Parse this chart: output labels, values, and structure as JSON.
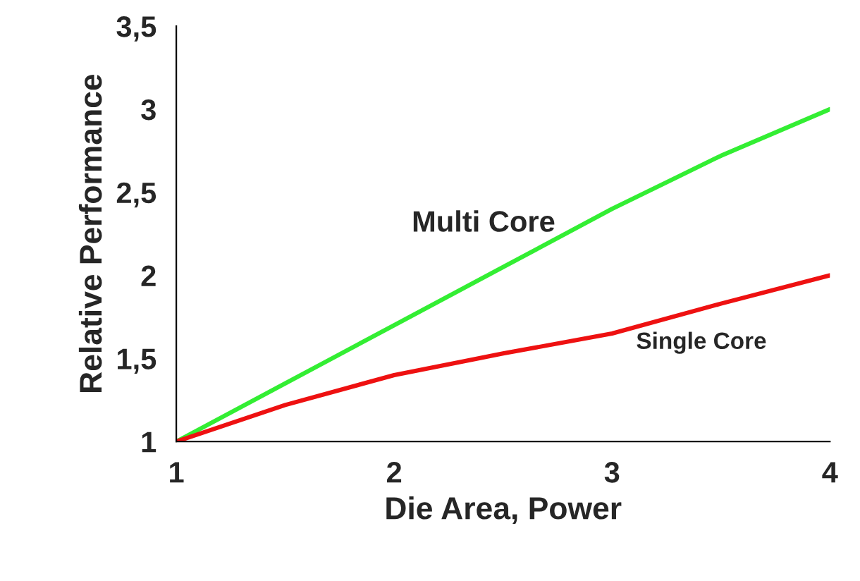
{
  "chart_data": {
    "type": "line",
    "xlabel": "Die Area, Power",
    "ylabel": "Relative Performance",
    "x": [
      1,
      1.5,
      2,
      2.5,
      3,
      3.5,
      4
    ],
    "series": [
      {
        "name": "Multi Core",
        "color": "#33ee33",
        "values": [
          1,
          1.35,
          1.7,
          2.05,
          2.4,
          2.72,
          3.0
        ]
      },
      {
        "name": "Single Core",
        "color": "#ee1111",
        "values": [
          1,
          1.22,
          1.4,
          1.53,
          1.65,
          1.83,
          2.0
        ]
      }
    ],
    "xlim": [
      1,
      4
    ],
    "xticks": [
      1,
      2,
      3,
      4
    ],
    "ylim": [
      1,
      3.5
    ],
    "yticks": [
      1,
      {
        "value": 1.5,
        "label": "1,5"
      },
      2,
      {
        "value": 2.5,
        "label": "2,5"
      },
      3,
      {
        "value": 3.5,
        "label": "3,5"
      }
    ],
    "grid": false,
    "legend": false
  }
}
